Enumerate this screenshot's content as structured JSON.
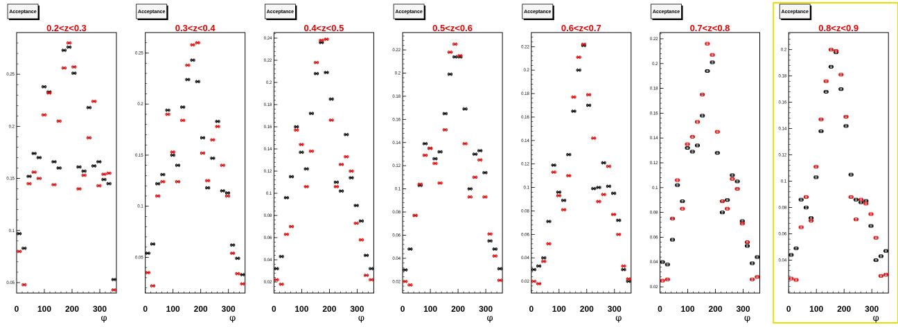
{
  "colors": {
    "series_a": "#000000",
    "series_b": "#e00000",
    "title": "#e00000",
    "highlight_frame": "#e8e000"
  },
  "chart_data": [
    {
      "type": "scatter",
      "title": "0.2<z<0.3",
      "stat_box": "Acceptance",
      "xlabel": "φ",
      "xlim": [
        0,
        360
      ],
      "ylim": [
        0.04,
        0.29
      ],
      "xticks": [
        0,
        100,
        200,
        300
      ],
      "xtick_labels": [
        "0",
        "100",
        "200",
        "300"
      ],
      "yticks": [
        0.05,
        0.1,
        0.15,
        0.2,
        0.25
      ],
      "ytick_labels": [
        "0.05",
        "0.1",
        "0.15",
        "0.2",
        "0.25"
      ],
      "marker_style": "x",
      "highlighted": false,
      "series": [
        {
          "x": [
            9,
            27,
            45,
            63,
            81,
            99,
            117,
            135,
            153,
            171,
            189,
            207,
            225,
            243,
            261,
            279,
            297,
            315,
            333,
            351
          ],
          "y": [
            0.097,
            0.083,
            0.152,
            0.174,
            0.17,
            0.238,
            0.233,
            0.166,
            0.16,
            0.273,
            0.276,
            0.251,
            0.161,
            0.157,
            0.218,
            0.162,
            0.166,
            0.149,
            0.145,
            0.053
          ]
        },
        {
          "x": [
            9,
            27,
            45,
            63,
            81,
            99,
            117,
            135,
            153,
            171,
            189,
            207,
            225,
            243,
            261,
            279,
            297,
            315,
            333,
            351
          ],
          "y": [
            0.08,
            0.048,
            0.145,
            0.156,
            0.15,
            0.211,
            0.232,
            0.144,
            0.205,
            0.256,
            0.28,
            0.257,
            0.14,
            0.153,
            0.189,
            0.224,
            0.143,
            0.154,
            0.155,
            0.043
          ]
        }
      ]
    },
    {
      "type": "scatter",
      "title": "0.3<z<0.4",
      "stat_box": "Acceptance",
      "xlabel": "φ",
      "xlim": [
        0,
        360
      ],
      "ylim": [
        0.015,
        0.27
      ],
      "xticks": [
        0,
        100,
        200,
        300
      ],
      "xtick_labels": [
        "0",
        "100",
        "200",
        "300"
      ],
      "yticks": [
        0.05,
        0.1,
        0.15,
        0.2,
        0.25
      ],
      "ytick_labels": [
        "0.05",
        "0.1",
        "0.15",
        "0.2",
        "0.25"
      ],
      "marker_style": "x",
      "highlighted": false,
      "series": [
        {
          "x": [
            9,
            27,
            45,
            63,
            81,
            99,
            117,
            135,
            153,
            171,
            189,
            207,
            225,
            243,
            261,
            279,
            297,
            315,
            333,
            351
          ],
          "y": [
            0.054,
            0.063,
            0.122,
            0.131,
            0.194,
            0.15,
            0.14,
            0.197,
            0.224,
            0.243,
            0.222,
            0.167,
            0.118,
            0.147,
            0.183,
            0.115,
            0.113,
            0.062,
            0.049,
            0.033
          ]
        },
        {
          "x": [
            9,
            27,
            45,
            63,
            81,
            99,
            117,
            135,
            153,
            171,
            189,
            207,
            225,
            243,
            261,
            279,
            297,
            315,
            333,
            351
          ],
          "y": [
            0.035,
            0.022,
            0.11,
            0.124,
            0.19,
            0.153,
            0.124,
            0.184,
            0.238,
            0.258,
            0.26,
            0.152,
            0.125,
            0.165,
            0.178,
            0.14,
            0.11,
            0.054,
            0.034,
            0.024
          ]
        }
      ]
    },
    {
      "type": "scatter",
      "title": "0.4<z<0.5",
      "stat_box": "Acceptance",
      "xlabel": "φ",
      "xlim": [
        0,
        360
      ],
      "ylim": [
        0.01,
        0.245
      ],
      "xticks": [
        0,
        100,
        200,
        300
      ],
      "xtick_labels": [
        "0",
        "100",
        "200",
        "300"
      ],
      "yticks": [
        0.02,
        0.04,
        0.06,
        0.08,
        0.1,
        0.12,
        0.14,
        0.16,
        0.18,
        0.2,
        0.22,
        0.24
      ],
      "ytick_labels": [
        "0.02",
        "0.04",
        "0.06",
        "0.08",
        "0.1",
        "0.12",
        "0.14",
        "0.16",
        "0.18",
        "0.2",
        "0.22",
        "0.24"
      ],
      "marker_style": "x",
      "highlighted": false,
      "series": [
        {
          "x": [
            9,
            27,
            45,
            63,
            81,
            99,
            117,
            135,
            153,
            171,
            189,
            207,
            225,
            243,
            261,
            279,
            297,
            315,
            333,
            351
          ],
          "y": [
            0.032,
            0.043,
            0.096,
            0.115,
            0.16,
            0.137,
            0.122,
            0.172,
            0.208,
            0.236,
            0.209,
            0.185,
            0.11,
            0.102,
            0.153,
            0.114,
            0.089,
            0.075,
            0.044,
            0.032
          ]
        },
        {
          "x": [
            9,
            27,
            45,
            63,
            81,
            99,
            117,
            135,
            153,
            171,
            189,
            207,
            225,
            243,
            261,
            279,
            297,
            315,
            333,
            351
          ],
          "y": [
            0.022,
            0.018,
            0.063,
            0.07,
            0.157,
            0.144,
            0.106,
            0.138,
            0.218,
            0.238,
            0.239,
            0.166,
            0.106,
            0.126,
            0.133,
            0.12,
            0.073,
            0.058,
            0.026,
            0.022
          ]
        }
      ]
    },
    {
      "type": "scatter",
      "title": "0.5<z<0.6",
      "stat_box": "Acceptance",
      "xlabel": "φ",
      "xlim": [
        0,
        360
      ],
      "ylim": [
        0.01,
        0.235
      ],
      "xticks": [
        0,
        100,
        200,
        300
      ],
      "xtick_labels": [
        "0",
        "100",
        "200",
        "300"
      ],
      "yticks": [
        0.02,
        0.04,
        0.06,
        0.08,
        0.1,
        0.12,
        0.14,
        0.16,
        0.18,
        0.2,
        0.22
      ],
      "ytick_labels": [
        "0.02",
        "0.04",
        "0.06",
        "0.08",
        "0.1",
        "0.12",
        "0.14",
        "0.16",
        "0.18",
        "0.2",
        "0.22"
      ],
      "marker_style": "x",
      "highlighted": false,
      "series": [
        {
          "x": [
            9,
            27,
            45,
            63,
            81,
            99,
            117,
            135,
            153,
            171,
            189,
            207,
            225,
            243,
            261,
            279,
            297,
            315,
            333,
            351
          ],
          "y": [
            0.03,
            0.048,
            0.077,
            0.103,
            0.139,
            0.135,
            0.126,
            0.132,
            0.165,
            0.199,
            0.214,
            0.214,
            0.169,
            0.1,
            0.13,
            0.133,
            0.114,
            0.055,
            0.048,
            0.031
          ]
        },
        {
          "x": [
            9,
            27,
            45,
            63,
            81,
            99,
            117,
            135,
            153,
            171,
            189,
            207,
            225,
            243,
            261,
            279,
            297,
            315,
            333,
            351
          ],
          "y": [
            0.02,
            0.017,
            0.077,
            0.104,
            0.129,
            0.135,
            0.122,
            0.105,
            0.151,
            0.218,
            0.225,
            0.215,
            0.139,
            0.093,
            0.11,
            0.125,
            0.093,
            0.061,
            0.042,
            0.021
          ]
        }
      ]
    },
    {
      "type": "scatter",
      "title": "0.6<z<0.7",
      "stat_box": "Acceptance",
      "xlabel": "φ",
      "xlim": [
        0,
        360
      ],
      "ylim": [
        0.01,
        0.232
      ],
      "xticks": [
        0,
        100,
        200,
        300
      ],
      "xtick_labels": [
        "0",
        "100",
        "200",
        "300"
      ],
      "yticks": [
        0.02,
        0.04,
        0.06,
        0.08,
        0.1,
        0.12,
        0.14,
        0.16,
        0.18,
        0.2,
        0.22
      ],
      "ytick_labels": [
        "0.02",
        "0.04",
        "0.06",
        "0.08",
        "0.1",
        "0.12",
        "0.14",
        "0.16",
        "0.18",
        "0.2",
        "0.22"
      ],
      "marker_style": "x",
      "highlighted": false,
      "series": [
        {
          "x": [
            9,
            27,
            45,
            63,
            81,
            99,
            117,
            135,
            153,
            171,
            189,
            207,
            225,
            243,
            261,
            279,
            297,
            315,
            333,
            351
          ],
          "y": [
            0.03,
            0.033,
            0.04,
            0.071,
            0.119,
            0.096,
            0.089,
            0.128,
            0.165,
            0.2,
            0.221,
            0.17,
            0.099,
            0.1,
            0.121,
            0.101,
            0.095,
            0.072,
            0.03,
            0.02
          ]
        },
        {
          "x": [
            9,
            27,
            45,
            63,
            81,
            99,
            117,
            135,
            153,
            171,
            189,
            207,
            225,
            243,
            261,
            279,
            297,
            315,
            333,
            351
          ],
          "y": [
            0.02,
            0.018,
            0.037,
            0.052,
            0.113,
            0.093,
            0.081,
            0.11,
            0.177,
            0.211,
            0.222,
            0.179,
            0.142,
            0.088,
            0.094,
            0.118,
            0.077,
            0.06,
            0.033,
            0.022
          ]
        }
      ]
    },
    {
      "type": "scatter",
      "title": "0.7<z<0.8",
      "stat_box": "Acceptance",
      "xlabel": "φ",
      "xlim": [
        0,
        360
      ],
      "ylim": [
        0.015,
        0.225
      ],
      "xticks": [
        0,
        100,
        200,
        300
      ],
      "xtick_labels": [
        "0",
        "100",
        "200",
        "300"
      ],
      "yticks": [
        0.02,
        0.04,
        0.06,
        0.08,
        0.1,
        0.12,
        0.14,
        0.16,
        0.18,
        0.2,
        0.22
      ],
      "ytick_labels": [
        "0.02",
        "0.04",
        "0.06",
        "0.08",
        "0.1",
        "0.12",
        "0.14",
        "0.16",
        "0.18",
        "0.2",
        "0.22"
      ],
      "marker_style": "open-square",
      "highlighted": false,
      "series": [
        {
          "x": [
            9,
            27,
            45,
            63,
            81,
            99,
            117,
            135,
            153,
            171,
            189,
            207,
            225,
            243,
            261,
            279,
            297,
            315,
            333,
            351
          ],
          "y": [
            0.04,
            0.038,
            0.058,
            0.102,
            0.089,
            0.132,
            0.129,
            0.134,
            0.158,
            0.194,
            0.201,
            0.128,
            0.08,
            0.09,
            0.11,
            0.105,
            0.073,
            0.053,
            0.039,
            0.044
          ]
        },
        {
          "x": [
            9,
            27,
            45,
            63,
            81,
            99,
            117,
            135,
            153,
            171,
            189,
            207,
            225,
            243,
            261,
            279,
            297,
            315,
            333,
            351
          ],
          "y": [
            0.025,
            0.026,
            0.075,
            0.106,
            0.083,
            0.135,
            0.141,
            0.153,
            0.175,
            0.216,
            0.207,
            0.145,
            0.089,
            0.083,
            0.107,
            0.099,
            0.071,
            0.056,
            0.026,
            0.028
          ]
        }
      ]
    },
    {
      "type": "scatter",
      "title": "0.8<z<0.9",
      "stat_box": "Acceptance",
      "xlabel": "φ",
      "xlim": [
        0,
        360
      ],
      "ylim": [
        0.015,
        0.213
      ],
      "xticks": [
        0,
        100,
        200,
        300
      ],
      "xtick_labels": [
        "0",
        "100",
        "200",
        "300"
      ],
      "yticks": [
        0.04,
        0.06,
        0.08,
        0.1,
        0.12,
        0.14,
        0.16,
        0.18,
        0.2
      ],
      "ytick_labels": [
        "0.04",
        "0.06",
        "0.08",
        "0.1",
        "0.12",
        "0.14",
        "0.16",
        "0.18",
        "0.2"
      ],
      "marker_style": "open-square",
      "highlighted": true,
      "series": [
        {
          "x": [
            9,
            27,
            45,
            63,
            81,
            99,
            117,
            135,
            153,
            171,
            189,
            207,
            225,
            243,
            261,
            279,
            297,
            315,
            333,
            351
          ],
          "y": [
            0.044,
            0.049,
            0.086,
            0.08,
            0.072,
            0.103,
            0.138,
            0.168,
            0.187,
            0.198,
            0.17,
            0.142,
            0.105,
            0.086,
            0.084,
            0.085,
            0.066,
            0.04,
            0.043,
            0.047
          ]
        },
        {
          "x": [
            9,
            27,
            45,
            63,
            81,
            99,
            117,
            135,
            153,
            171,
            189,
            207,
            225,
            243,
            261,
            279,
            297,
            315,
            333,
            351
          ],
          "y": [
            0.026,
            0.025,
            0.065,
            0.088,
            0.07,
            0.111,
            0.147,
            0.176,
            0.2,
            0.199,
            0.181,
            0.149,
            0.088,
            0.071,
            0.086,
            0.083,
            0.075,
            0.057,
            0.028,
            0.029
          ]
        }
      ]
    }
  ]
}
